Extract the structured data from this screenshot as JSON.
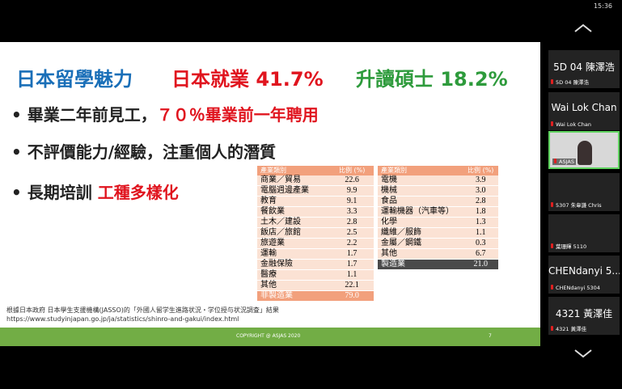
{
  "clock": "15:36",
  "slide": {
    "title": {
      "lead": "日本留學魅力",
      "employment": "日本就業 41.7%",
      "masters": "升讀碩士 18.2%"
    },
    "bullets": [
      {
        "text": "畢業二年前見工，",
        "highlight": "７０％畢業前一年聘用"
      },
      {
        "text": "不評價能力/經驗，注重個人的潛質"
      },
      {
        "text": "長期培訓 ",
        "highlight": "工種多樣化"
      }
    ],
    "tables": [
      {
        "header": [
          "產業類別",
          "比例 (%)"
        ],
        "rows": [
          [
            "商業／貿易",
            "22.6"
          ],
          [
            "電腦週邊產業",
            "9.9"
          ],
          [
            "教育",
            "9.1"
          ],
          [
            "餐飲業",
            "3.3"
          ],
          [
            "土木／建設",
            "2.8"
          ],
          [
            "飯店／旅館",
            "2.5"
          ],
          [
            "旅遊業",
            "2.2"
          ],
          [
            "運輸",
            "1.7"
          ],
          [
            "金融保險",
            "1.7"
          ],
          [
            "醫療",
            "1.1"
          ],
          [
            "其他",
            "22.1"
          ]
        ],
        "total": [
          "非製造業",
          "79.0"
        ]
      },
      {
        "header": [
          "產業類別",
          "比例 (%)"
        ],
        "rows": [
          [
            "電機",
            "3.9"
          ],
          [
            "機械",
            "3.0"
          ],
          [
            "食品",
            "2.8"
          ],
          [
            "運輸機器（汽車等）",
            "1.8"
          ],
          [
            "化學",
            "1.3"
          ],
          [
            "纖維／服飾",
            "1.1"
          ],
          [
            "金屬／鋼鐵",
            "0.3"
          ],
          [
            "其他",
            "6.7"
          ]
        ],
        "total": [
          "製造業",
          "21.0"
        ]
      }
    ],
    "footnote": [
      "根據日本政府 日本學生支援機構(JASSO)的「外國人留学生進路状況・学位授与状況調査」結果",
      "https://www.studyinjapan.go.jp/ja/statistics/shinro-and-gakui/index.html"
    ],
    "footer": {
      "copyright": "COPYRIGHT @ ASJAS 2020",
      "page": "7"
    }
  },
  "participants": [
    {
      "display": "5D 04 陳澤浩",
      "label": "5D 04 陳澤浩"
    },
    {
      "display": "Wai Lok Chan",
      "label": "Wai Lok Chan"
    },
    {
      "label": "ASJAS",
      "video": true
    },
    {
      "label": "5307 朱韋謙 Chris"
    },
    {
      "label": "葉珊輝 5110"
    },
    {
      "display": "CHENdanyi 5...",
      "label": "CHENdanyi 5304"
    },
    {
      "display": "4321 黃澤佳",
      "label": "4321 黃澤佳"
    }
  ]
}
